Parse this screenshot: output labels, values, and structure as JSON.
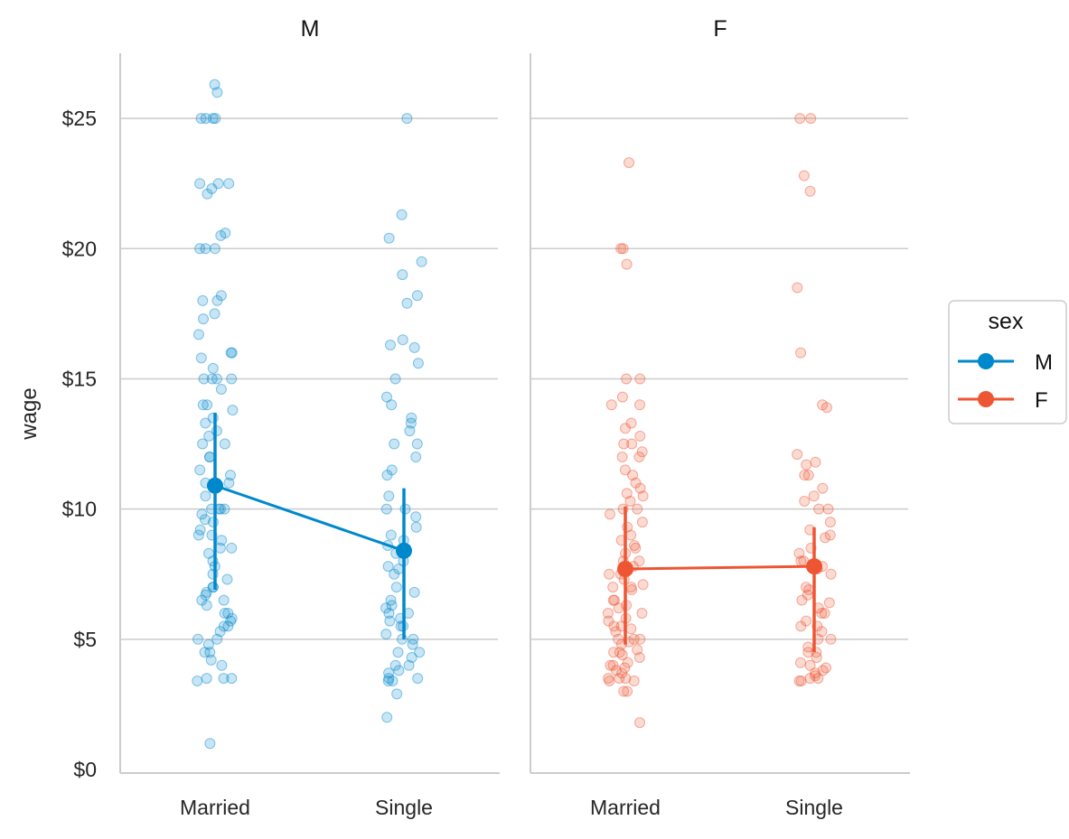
{
  "chart_data": {
    "type": "scatter",
    "facet_by": "sex",
    "ylabel": "wage",
    "ylim": [
      0,
      27.5
    ],
    "yticks": [
      0,
      5,
      10,
      15,
      20,
      25
    ],
    "ytick_labels": [
      "$0",
      "$5",
      "$10",
      "$15",
      "$20",
      "$25"
    ],
    "categories": [
      "Married",
      "Single"
    ],
    "grid": "horizontal",
    "legend": {
      "title": "sex",
      "placement": "right",
      "entries": [
        {
          "label": "M",
          "color": "#0088cc"
        },
        {
          "label": "F",
          "color": "#ee5533"
        }
      ]
    },
    "panels": [
      {
        "title": "M",
        "color": "#0088cc",
        "point_estimates": [
          {
            "category": "Married",
            "mean": 10.9,
            "ci": [
              6.9,
              13.7
            ]
          },
          {
            "category": "Single",
            "mean": 8.4,
            "ci": [
              5.0,
              10.8
            ]
          }
        ],
        "points": {
          "Married": [
            26.3,
            26.0,
            25.0,
            25.0,
            25.0,
            25.0,
            22.5,
            22.5,
            22.5,
            22.3,
            22.1,
            20.6,
            20.5,
            20.0,
            20.0,
            20.0,
            18.2,
            18.0,
            18.0,
            17.5,
            17.3,
            16.7,
            16.0,
            16.0,
            15.8,
            15.4,
            15.0,
            15.0,
            15.0,
            15.0,
            14.6,
            14.0,
            14.0,
            13.8,
            13.5,
            13.3,
            13.0,
            12.8,
            12.5,
            12.5,
            12.0,
            12.0,
            11.5,
            11.3,
            11.0,
            11.0,
            10.8,
            10.5,
            10.0,
            10.0,
            10.0,
            10.0,
            9.8,
            9.6,
            9.5,
            9.2,
            9.0,
            9.0,
            8.8,
            8.5,
            8.5,
            8.3,
            8.0,
            7.8,
            7.5,
            7.3,
            7.0,
            7.0,
            6.8,
            6.7,
            6.5,
            6.5,
            6.3,
            6.0,
            6.0,
            5.8,
            5.7,
            5.5,
            5.5,
            5.3,
            5.0,
            5.0,
            4.8,
            4.5,
            4.5,
            4.2,
            4.0,
            3.5,
            3.5,
            3.5,
            3.4,
            1.0
          ],
          "Single": [
            25.0,
            21.3,
            20.4,
            19.5,
            19.0,
            18.2,
            17.9,
            16.5,
            16.3,
            16.2,
            15.6,
            15.0,
            14.3,
            14.0,
            13.5,
            13.3,
            13.0,
            12.5,
            12.5,
            12.0,
            11.5,
            11.3,
            10.5,
            10.0,
            10.0,
            9.7,
            9.3,
            9.0,
            8.8,
            8.6,
            8.3,
            8.0,
            7.8,
            7.7,
            7.5,
            7.0,
            6.8,
            6.5,
            6.3,
            6.2,
            6.0,
            6.0,
            5.8,
            5.7,
            5.5,
            5.5,
            5.2,
            5.0,
            5.0,
            4.8,
            4.5,
            4.5,
            4.3,
            4.0,
            4.0,
            3.8,
            3.7,
            3.5,
            3.5,
            3.4,
            3.4,
            2.9,
            2.0
          ]
        }
      },
      {
        "title": "F",
        "color": "#ee5533",
        "point_estimates": [
          {
            "category": "Married",
            "mean": 7.7,
            "ci": [
              4.8,
              10.1
            ]
          },
          {
            "category": "Single",
            "mean": 7.8,
            "ci": [
              4.5,
              9.3
            ]
          }
        ],
        "points": {
          "Married": [
            23.3,
            20.0,
            20.0,
            19.4,
            15.0,
            15.0,
            14.3,
            14.0,
            14.0,
            13.3,
            13.1,
            12.8,
            12.5,
            12.5,
            12.2,
            12.0,
            12.0,
            11.5,
            11.3,
            11.0,
            10.8,
            10.6,
            10.5,
            10.3,
            10.0,
            10.0,
            9.8,
            9.5,
            9.3,
            9.0,
            8.8,
            8.6,
            8.5,
            8.3,
            8.0,
            8.0,
            7.8,
            7.5,
            7.5,
            7.3,
            7.1,
            7.0,
            7.0,
            6.9,
            6.5,
            6.5,
            6.3,
            6.2,
            6.0,
            6.0,
            5.8,
            5.7,
            5.5,
            5.5,
            5.4,
            5.3,
            5.0,
            5.0,
            5.0,
            4.9,
            4.8,
            4.6,
            4.5,
            4.5,
            4.4,
            4.3,
            4.1,
            4.0,
            4.0,
            3.9,
            3.8,
            3.7,
            3.5,
            3.5,
            3.5,
            3.4,
            3.4,
            3.0,
            3.0,
            1.8
          ],
          "Single": [
            25.0,
            25.0,
            22.8,
            22.2,
            18.5,
            16.0,
            14.0,
            13.9,
            12.1,
            11.8,
            11.7,
            11.3,
            11.3,
            10.8,
            10.5,
            10.3,
            10.0,
            10.0,
            9.5,
            9.2,
            9.0,
            8.9,
            8.5,
            8.3,
            8.0,
            8.0,
            7.8,
            7.7,
            7.5,
            7.0,
            6.9,
            6.7,
            6.5,
            6.4,
            6.2,
            6.0,
            6.0,
            5.7,
            5.5,
            5.5,
            5.3,
            5.0,
            5.0,
            4.7,
            4.5,
            4.5,
            4.3,
            4.1,
            4.0,
            3.9,
            3.8,
            3.7,
            3.6,
            3.5,
            3.5,
            3.4,
            3.4
          ]
        }
      }
    ]
  }
}
